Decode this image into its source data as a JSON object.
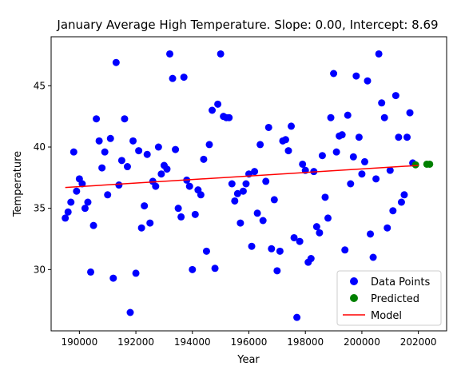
{
  "chart_data": {
    "type": "scatter",
    "title": "January Average High Temperature. Slope: 0.00, Intercept: 8.69",
    "xlabel": "Year",
    "ylabel": "Temperature",
    "xlim": [
      189000,
      203000
    ],
    "ylim": [
      25,
      49
    ],
    "xticks": [
      {
        "value": 190000,
        "label": "190000"
      },
      {
        "value": 192000,
        "label": "192000"
      },
      {
        "value": 194000,
        "label": "194000"
      },
      {
        "value": 196000,
        "label": "196000"
      },
      {
        "value": 198000,
        "label": "198000"
      },
      {
        "value": 200000,
        "label": "200000"
      },
      {
        "value": 202000,
        "label": "202000"
      }
    ],
    "yticks": [
      {
        "value": 30,
        "label": "30"
      },
      {
        "value": 35,
        "label": "35"
      },
      {
        "value": 40,
        "label": "40"
      },
      {
        "value": 45,
        "label": "45"
      }
    ],
    "grid": false,
    "legend_position": "bottom-right",
    "series": [
      {
        "name": "Data Points",
        "kind": "scatter",
        "color": "#0000ff",
        "points": [
          [
            189500,
            34.2
          ],
          [
            189600,
            34.7
          ],
          [
            189700,
            35.5
          ],
          [
            189800,
            39.6
          ],
          [
            189900,
            36.4
          ],
          [
            190000,
            37.4
          ],
          [
            190100,
            37.0
          ],
          [
            190200,
            35.0
          ],
          [
            190300,
            35.5
          ],
          [
            190400,
            29.8
          ],
          [
            190500,
            33.6
          ],
          [
            190600,
            42.3
          ],
          [
            190700,
            40.5
          ],
          [
            190800,
            38.3
          ],
          [
            190900,
            39.6
          ],
          [
            191000,
            36.1
          ],
          [
            191100,
            40.7
          ],
          [
            191200,
            29.3
          ],
          [
            191300,
            46.9
          ],
          [
            191400,
            36.9
          ],
          [
            191500,
            38.9
          ],
          [
            191600,
            42.3
          ],
          [
            191700,
            38.4
          ],
          [
            191800,
            26.5
          ],
          [
            191900,
            40.5
          ],
          [
            192000,
            29.7
          ],
          [
            192100,
            39.7
          ],
          [
            192200,
            33.4
          ],
          [
            192300,
            35.2
          ],
          [
            192400,
            39.4
          ],
          [
            192500,
            33.8
          ],
          [
            192600,
            37.2
          ],
          [
            192700,
            36.8
          ],
          [
            192800,
            40.0
          ],
          [
            192900,
            37.8
          ],
          [
            193000,
            38.5
          ],
          [
            193100,
            38.2
          ],
          [
            193200,
            47.6
          ],
          [
            193300,
            45.6
          ],
          [
            193400,
            39.8
          ],
          [
            193500,
            35.0
          ],
          [
            193600,
            34.3
          ],
          [
            193700,
            45.7
          ],
          [
            193800,
            37.3
          ],
          [
            193900,
            36.8
          ],
          [
            194000,
            30.0
          ],
          [
            194100,
            34.5
          ],
          [
            194200,
            36.5
          ],
          [
            194300,
            36.1
          ],
          [
            194400,
            39.0
          ],
          [
            194500,
            31.5
          ],
          [
            194600,
            40.2
          ],
          [
            194700,
            43.0
          ],
          [
            194800,
            30.1
          ],
          [
            194900,
            43.5
          ],
          [
            195000,
            47.6
          ],
          [
            195100,
            42.5
          ],
          [
            195200,
            42.4
          ],
          [
            195300,
            42.4
          ],
          [
            195400,
            37.0
          ],
          [
            195500,
            35.6
          ],
          [
            195600,
            36.2
          ],
          [
            195700,
            33.8
          ],
          [
            195800,
            36.4
          ],
          [
            195900,
            37.0
          ],
          [
            196000,
            37.8
          ],
          [
            196100,
            31.9
          ],
          [
            196200,
            38.0
          ],
          [
            196300,
            34.6
          ],
          [
            196400,
            40.2
          ],
          [
            196500,
            34.0
          ],
          [
            196600,
            37.2
          ],
          [
            196700,
            41.6
          ],
          [
            196800,
            31.7
          ],
          [
            196900,
            35.7
          ],
          [
            197000,
            29.9
          ],
          [
            197100,
            31.5
          ],
          [
            197200,
            40.5
          ],
          [
            197300,
            40.6
          ],
          [
            197400,
            39.7
          ],
          [
            197500,
            41.7
          ],
          [
            197600,
            32.6
          ],
          [
            197700,
            26.1
          ],
          [
            197800,
            32.3
          ],
          [
            197900,
            38.6
          ],
          [
            198000,
            38.1
          ],
          [
            198100,
            30.6
          ],
          [
            198200,
            30.9
          ],
          [
            198300,
            38.0
          ],
          [
            198400,
            33.5
          ],
          [
            198500,
            33.0
          ],
          [
            198600,
            39.3
          ],
          [
            198700,
            35.9
          ],
          [
            198800,
            34.2
          ],
          [
            198900,
            42.4
          ],
          [
            199000,
            46.0
          ],
          [
            199100,
            39.6
          ],
          [
            199200,
            40.9
          ],
          [
            199300,
            41.0
          ],
          [
            199400,
            31.6
          ],
          [
            199500,
            42.6
          ],
          [
            199600,
            37.0
          ],
          [
            199700,
            39.2
          ],
          [
            199800,
            45.8
          ],
          [
            199900,
            40.8
          ],
          [
            200000,
            37.8
          ],
          [
            200100,
            38.8
          ],
          [
            200200,
            45.4
          ],
          [
            200300,
            32.9
          ],
          [
            200400,
            31.0
          ],
          [
            200500,
            37.4
          ],
          [
            200600,
            47.6
          ],
          [
            200700,
            43.6
          ],
          [
            200800,
            42.4
          ],
          [
            200900,
            33.4
          ],
          [
            201000,
            38.1
          ],
          [
            201100,
            34.8
          ],
          [
            201200,
            44.2
          ],
          [
            201300,
            40.8
          ],
          [
            201400,
            35.5
          ],
          [
            201500,
            36.1
          ],
          [
            201600,
            40.8
          ],
          [
            201700,
            42.8
          ],
          [
            201800,
            38.7
          ]
        ]
      },
      {
        "name": "Predicted",
        "kind": "scatter",
        "color": "#008000",
        "points": [
          [
            201900,
            38.55
          ],
          [
            202300,
            38.6
          ],
          [
            202400,
            38.6
          ]
        ]
      },
      {
        "name": "Model",
        "kind": "line",
        "color": "#ff0000",
        "points": [
          [
            189500,
            36.7
          ],
          [
            202000,
            38.5
          ]
        ]
      }
    ]
  }
}
